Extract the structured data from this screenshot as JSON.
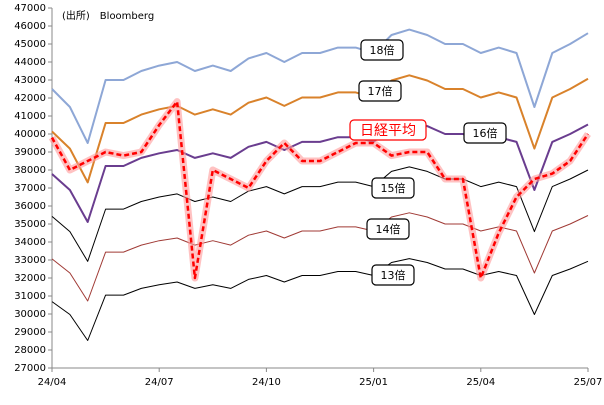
{
  "chart_data": {
    "type": "line",
    "source": "(出所)　Bloomberg",
    "categories": [
      "24/04",
      null,
      null,
      null,
      null,
      null,
      "24/07",
      null,
      null,
      null,
      null,
      null,
      "24/10",
      null,
      null,
      null,
      null,
      null,
      "25/01",
      null,
      null,
      null,
      null,
      null,
      "25/04",
      null,
      null,
      null,
      null,
      null,
      "25/07"
    ],
    "series": [
      {
        "name": "18倍",
        "color": "#8ea7d6",
        "values": [
          42500,
          41500,
          39500,
          43000,
          43000,
          43500,
          43800,
          44000,
          43500,
          43800,
          43500,
          44200,
          44500,
          44000,
          44500,
          44500,
          44800,
          44800,
          44500,
          45500,
          45800,
          45500,
          45000,
          45000,
          44500,
          44800,
          44500,
          41500,
          44500,
          45000,
          45600
        ]
      },
      {
        "name": "17倍",
        "color": "#d9822b",
        "values": [
          40140,
          39190,
          37310,
          40610,
          40610,
          41080,
          41370,
          41560,
          41080,
          41370,
          41080,
          41740,
          42030,
          41560,
          42030,
          42030,
          42310,
          42310,
          42030,
          42970,
          43260,
          42970,
          42500,
          42500,
          42030,
          42310,
          42030,
          39190,
          42030,
          42500,
          43070
        ]
      },
      {
        "name": "16倍",
        "color": "#6a3d8f",
        "values": [
          37780,
          36890,
          35110,
          38220,
          38220,
          38670,
          38930,
          39110,
          38670,
          38930,
          38670,
          39290,
          39560,
          39110,
          39560,
          39560,
          39820,
          39820,
          39560,
          40440,
          40710,
          40440,
          40000,
          40000,
          39560,
          39820,
          39560,
          36890,
          39560,
          40000,
          40530
        ]
      },
      {
        "name": "15倍",
        "color": "#000000",
        "values": [
          35420,
          34580,
          32920,
          35830,
          35830,
          36250,
          36500,
          36670,
          36250,
          36500,
          36250,
          36830,
          37080,
          36670,
          37080,
          37080,
          37330,
          37330,
          37080,
          37920,
          38170,
          37920,
          37500,
          37500,
          37080,
          37330,
          37080,
          34580,
          37080,
          37500,
          38000
        ]
      },
      {
        "name": "14倍",
        "color": "#a03a35",
        "values": [
          33060,
          32280,
          30720,
          33440,
          33440,
          33830,
          34070,
          34220,
          33830,
          34070,
          33830,
          34380,
          34610,
          34220,
          34610,
          34610,
          34840,
          34840,
          34610,
          35390,
          35620,
          35390,
          35000,
          35000,
          34610,
          34840,
          34610,
          32280,
          34610,
          35000,
          35470
        ]
      },
      {
        "name": "13倍",
        "color": "#000000",
        "values": [
          30690,
          29970,
          28530,
          31050,
          31050,
          31420,
          31630,
          31780,
          31420,
          31630,
          31420,
          31920,
          32140,
          31780,
          32140,
          32140,
          32360,
          32360,
          32140,
          32860,
          33080,
          32860,
          32500,
          32500,
          32140,
          32360,
          32140,
          29970,
          32140,
          32500,
          32930
        ]
      },
      {
        "name": "日経平均",
        "color": "#ff0000",
        "values": [
          39800,
          38000,
          38500,
          39000,
          38800,
          39000,
          40500,
          41800,
          32000,
          38000,
          37500,
          37000,
          38500,
          39500,
          38500,
          38500,
          39000,
          39500,
          39500,
          38800,
          39000,
          39000,
          37500,
          37500,
          32000,
          34500,
          36500,
          37500,
          37800,
          38500,
          40000
        ]
      }
    ],
    "ylim": [
      27000,
      47000
    ],
    "yticks": [
      27000,
      28000,
      29000,
      30000,
      31000,
      32000,
      33000,
      34000,
      35000,
      36000,
      37000,
      38000,
      39000,
      40000,
      41000,
      42000,
      43000,
      44000,
      45000,
      46000,
      47000
    ],
    "grid": false
  }
}
